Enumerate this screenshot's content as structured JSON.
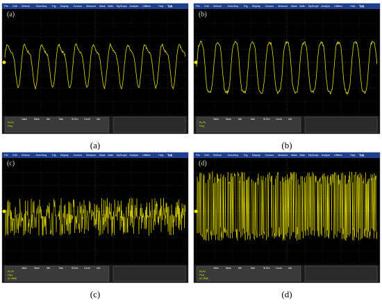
{
  "menu": [
    "File",
    "Edit",
    "Vertical",
    "Horiz/Acq",
    "Trig",
    "Display",
    "Cursors",
    "Measure",
    "Mask",
    "Math",
    "MyScope",
    "Analyze",
    "Utilities",
    "Help"
  ],
  "brand": "Tek",
  "panels": [
    {
      "label": "(a)",
      "caption": "(a)",
      "table_headers": [
        "Value",
        "Mean",
        "Min",
        "Max",
        "St Dev",
        "Count",
        "Info"
      ],
      "rows": [
        "Pk-Pk",
        "Freq"
      ]
    },
    {
      "label": "(b)",
      "caption": "(b)",
      "table_headers": [
        "Value",
        "Mean",
        "Min",
        "Max",
        "St Dev",
        "Count",
        "Info"
      ],
      "rows": [
        "Pk-Pk",
        "Freq"
      ]
    },
    {
      "label": "(c)",
      "caption": "(c)",
      "table_headers": [
        "Value",
        "Mean",
        "Min",
        "Max",
        "St Dev",
        "Count",
        "Info"
      ],
      "rows": [
        "Pk-Pk",
        "Freq",
        "AC RMS"
      ]
    },
    {
      "label": "(d)",
      "caption": "(d)",
      "table_headers": [
        "Value",
        "Mean",
        "Min",
        "Max",
        "St Dev",
        "Count",
        "Info"
      ],
      "rows": [
        "Pk-Pk",
        "Freq",
        "AC RMS"
      ]
    }
  ]
}
